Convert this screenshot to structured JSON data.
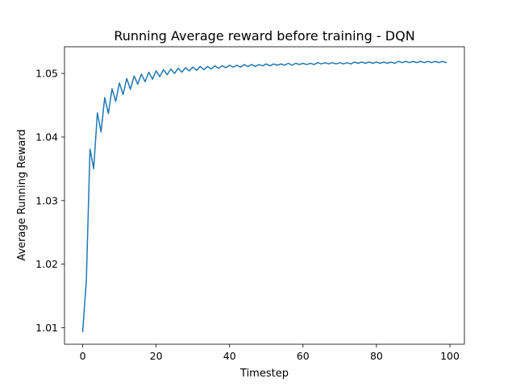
{
  "chart_data": {
    "type": "line",
    "title": "Running Average reward before training - DQN",
    "xlabel": "Timestep",
    "ylabel": "Average Running Reward",
    "xlim": [
      -4.95,
      103.95
    ],
    "ylim": [
      1.0074,
      1.0542
    ],
    "x_ticks": [
      0,
      20,
      40,
      60,
      80,
      100
    ],
    "x_tick_labels": [
      "0",
      "20",
      "40",
      "60",
      "80",
      "100"
    ],
    "y_ticks": [
      1.01,
      1.02,
      1.03,
      1.04,
      1.05
    ],
    "y_tick_labels": [
      "1.01",
      "1.02",
      "1.03",
      "1.04",
      "1.05"
    ],
    "grid": false,
    "series": [
      {
        "color": "#1f77b4",
        "x": [
          0,
          1,
          2,
          3,
          4,
          5,
          6,
          7,
          8,
          9,
          10,
          11,
          12,
          13,
          14,
          15,
          16,
          17,
          18,
          19,
          20,
          21,
          22,
          23,
          24,
          25,
          26,
          27,
          28,
          29,
          30,
          31,
          32,
          33,
          34,
          35,
          36,
          37,
          38,
          39,
          40,
          41,
          42,
          43,
          44,
          45,
          46,
          47,
          48,
          49,
          50,
          51,
          52,
          53,
          54,
          55,
          56,
          57,
          58,
          59,
          60,
          61,
          62,
          63,
          64,
          65,
          66,
          67,
          68,
          69,
          70,
          71,
          72,
          73,
          74,
          75,
          76,
          77,
          78,
          79,
          80,
          81,
          82,
          83,
          84,
          85,
          86,
          87,
          88,
          89,
          90,
          91,
          92,
          93,
          94,
          95,
          96,
          97,
          98,
          99
        ],
        "y": [
          1.0094,
          1.0175,
          1.0381,
          1.035,
          1.0438,
          1.0408,
          1.0462,
          1.0437,
          1.0476,
          1.0456,
          1.0485,
          1.0467,
          1.0492,
          1.0475,
          1.0496,
          1.0483,
          1.0499,
          1.0487,
          1.0502,
          1.0491,
          1.0504,
          1.0495,
          1.0506,
          1.0498,
          1.0507,
          1.05,
          1.0508,
          1.0502,
          1.0509,
          1.0504,
          1.051,
          1.0505,
          1.0511,
          1.0506,
          1.0511,
          1.0507,
          1.0512,
          1.0508,
          1.0512,
          1.0509,
          1.0513,
          1.051,
          1.0513,
          1.051,
          1.0514,
          1.0511,
          1.0514,
          1.0511,
          1.0514,
          1.0512,
          1.0515,
          1.0512,
          1.0515,
          1.0513,
          1.0515,
          1.0513,
          1.0516,
          1.0513,
          1.0516,
          1.0514,
          1.0516,
          1.0514,
          1.0516,
          1.0514,
          1.0517,
          1.0515,
          1.0517,
          1.0515,
          1.0517,
          1.0515,
          1.0517,
          1.0515,
          1.0517,
          1.0515,
          1.0518,
          1.0516,
          1.0518,
          1.0516,
          1.0518,
          1.0516,
          1.0518,
          1.0516,
          1.0518,
          1.0516,
          1.0518,
          1.0516,
          1.0519,
          1.0517,
          1.0519,
          1.0517,
          1.0519,
          1.0517,
          1.0519,
          1.0517,
          1.0519,
          1.0517,
          1.0519,
          1.0517,
          1.0519,
          1.0517
        ]
      }
    ]
  }
}
